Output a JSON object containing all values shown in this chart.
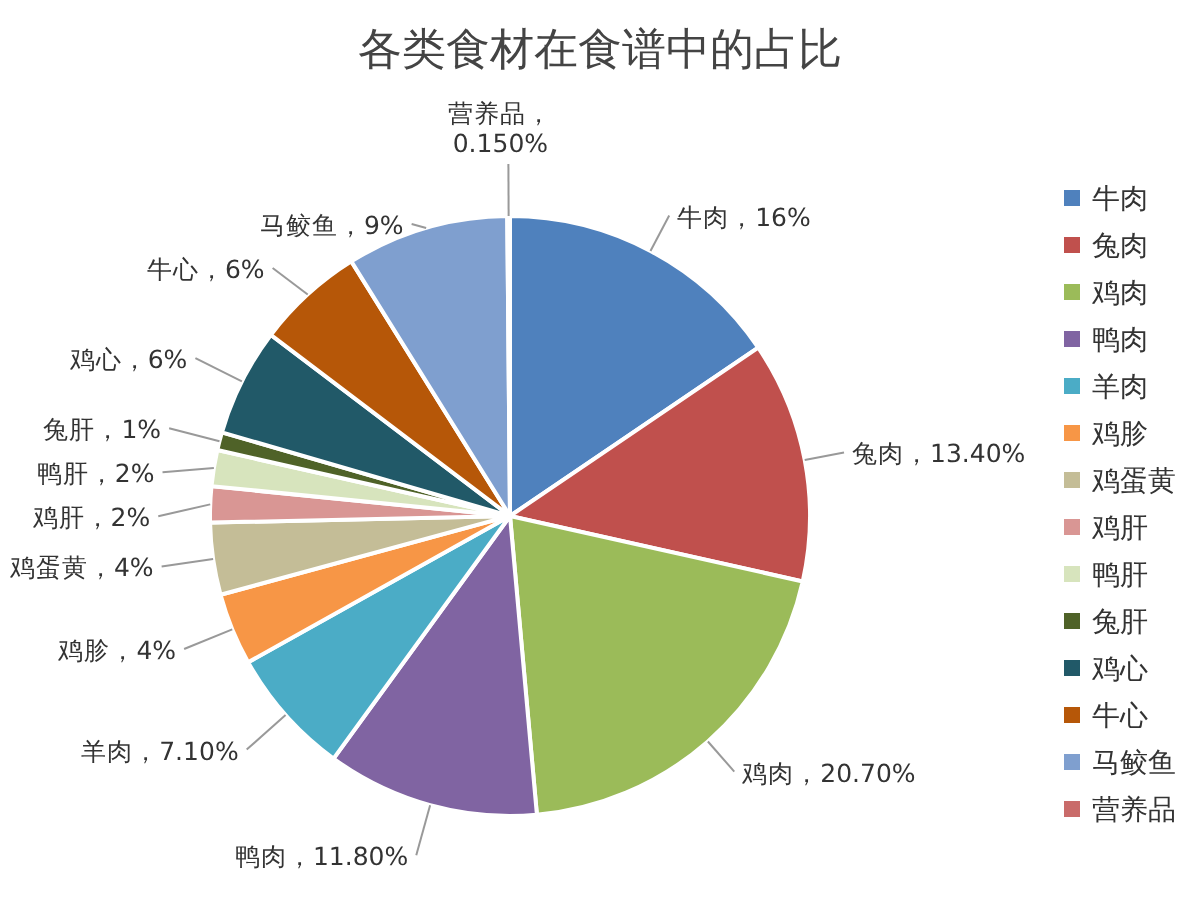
{
  "chart_data": {
    "type": "pie",
    "title": "各类食材在食谱中的占比",
    "categories": [
      "牛肉",
      "兔肉",
      "鸡肉",
      "鸭肉",
      "羊肉",
      "鸡胗",
      "鸡蛋黄",
      "鸡肝",
      "鸭肝",
      "兔肝",
      "鸡心",
      "牛心",
      "马鲛鱼",
      "营养品"
    ],
    "values": [
      16,
      13.4,
      20.7,
      11.8,
      7.1,
      4,
      4,
      2,
      2,
      1,
      6,
      6,
      9,
      0.15
    ],
    "value_labels": [
      "牛肉，16%",
      "兔肉，13.40%",
      "鸡肉，20.70%",
      "鸭肉，11.80%",
      "羊肉，7.10%",
      "鸡胗，4%",
      "鸡蛋黄，4%",
      "鸡肝，2%",
      "鸭肝，2%",
      "兔肝，1%",
      "鸡心，6%",
      "牛心，6%",
      "马鲛鱼，9%",
      "营养品，\n0.150%"
    ],
    "colors": [
      "#4f81bd",
      "#c0504d",
      "#9bbb59",
      "#8064a2",
      "#4bacc6",
      "#f79646",
      "#c4bd97",
      "#d99694",
      "#d7e4bd",
      "#4f6228",
      "#215968",
      "#b65708",
      "#7f9fcf",
      "#c96b6a"
    ],
    "legend": "right"
  }
}
